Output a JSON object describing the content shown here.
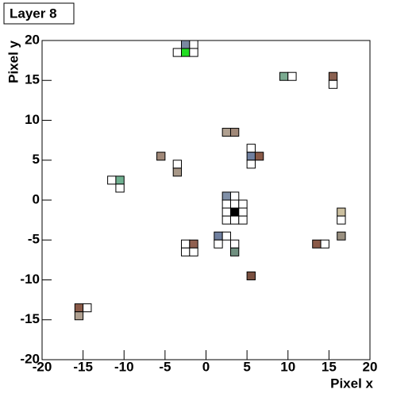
{
  "chart_data": {
    "type": "cells2d",
    "title": "Layer 8",
    "x_label": "Pixel x",
    "y_label": "Pixel y",
    "xlim": [
      -20,
      20
    ],
    "ylim": [
      -20,
      20
    ],
    "xticks": [
      -20,
      -15,
      -10,
      -5,
      0,
      5,
      10,
      15,
      20
    ],
    "yticks": [
      -20,
      -15,
      -10,
      -5,
      0,
      5,
      10,
      15,
      20
    ],
    "cell_size": 1,
    "cells": [
      {
        "x": -2.5,
        "y": 19.5,
        "color": "#7a88a0"
      },
      {
        "x": -1.5,
        "y": 19.5,
        "color": "#ffffff"
      },
      {
        "x": -3.5,
        "y": 18.5,
        "color": "#ffffff"
      },
      {
        "x": -2.5,
        "y": 18.5,
        "color": "#22dd22"
      },
      {
        "x": -1.5,
        "y": 18.5,
        "color": "#ffffff"
      },
      {
        "x": 9.5,
        "y": 15.5,
        "color": "#7aaa90"
      },
      {
        "x": 10.5,
        "y": 15.5,
        "color": "#ffffff"
      },
      {
        "x": 15.5,
        "y": 15.5,
        "color": "#8a6050"
      },
      {
        "x": 15.5,
        "y": 14.5,
        "color": "#ffffff"
      },
      {
        "x": 2.5,
        "y": 8.5,
        "color": "#b0a090"
      },
      {
        "x": 3.5,
        "y": 8.5,
        "color": "#a08878"
      },
      {
        "x": 5.5,
        "y": 6.5,
        "color": "#ffffff"
      },
      {
        "x": 5.5,
        "y": 5.5,
        "color": "#7080a0"
      },
      {
        "x": 6.5,
        "y": 5.5,
        "color": "#8a5a48"
      },
      {
        "x": 5.5,
        "y": 4.5,
        "color": "#ffffff"
      },
      {
        "x": -5.5,
        "y": 5.5,
        "color": "#a08878"
      },
      {
        "x": -3.5,
        "y": 4.5,
        "color": "#ffffff"
      },
      {
        "x": -3.5,
        "y": 3.5,
        "color": "#a89888"
      },
      {
        "x": -11.5,
        "y": 2.5,
        "color": "#ffffff"
      },
      {
        "x": -10.5,
        "y": 2.5,
        "color": "#70b090"
      },
      {
        "x": -10.5,
        "y": 1.5,
        "color": "#ffffff"
      },
      {
        "x": 2.5,
        "y": 0.5,
        "color": "#8090a8"
      },
      {
        "x": 3.5,
        "y": 0.5,
        "color": "#ffffff"
      },
      {
        "x": 2.5,
        "y": -0.5,
        "color": "#ffffff"
      },
      {
        "x": 3.5,
        "y": -0.5,
        "color": "#ffffff"
      },
      {
        "x": 4.5,
        "y": -0.5,
        "color": "#ffffff"
      },
      {
        "x": 2.5,
        "y": -1.5,
        "color": "#ffffff"
      },
      {
        "x": 3.5,
        "y": -1.5,
        "color": "#000000"
      },
      {
        "x": 4.5,
        "y": -1.5,
        "color": "#ffffff"
      },
      {
        "x": 2.5,
        "y": -2.5,
        "color": "#ffffff"
      },
      {
        "x": 3.5,
        "y": -2.5,
        "color": "#ffffff"
      },
      {
        "x": 4.5,
        "y": -2.5,
        "color": "#ffffff"
      },
      {
        "x": 16.5,
        "y": -1.5,
        "color": "#ccc0a0"
      },
      {
        "x": 16.5,
        "y": -2.5,
        "color": "#ffffff"
      },
      {
        "x": 16.5,
        "y": -4.5,
        "color": "#9a9080"
      },
      {
        "x": 13.5,
        "y": -5.5,
        "color": "#8a5a48"
      },
      {
        "x": 14.5,
        "y": -5.5,
        "color": "#ffffff"
      },
      {
        "x": 1.5,
        "y": -4.5,
        "color": "#7080a0"
      },
      {
        "x": 2.5,
        "y": -4.5,
        "color": "#ffffff"
      },
      {
        "x": 1.5,
        "y": -5.5,
        "color": "#ffffff"
      },
      {
        "x": 3.5,
        "y": -5.5,
        "color": "#ffffff"
      },
      {
        "x": 3.5,
        "y": -6.5,
        "color": "#709080"
      },
      {
        "x": -2.5,
        "y": -5.5,
        "color": "#ffffff"
      },
      {
        "x": -1.5,
        "y": -5.5,
        "color": "#906050"
      },
      {
        "x": -2.5,
        "y": -6.5,
        "color": "#ffffff"
      },
      {
        "x": -1.5,
        "y": -6.5,
        "color": "#ffffff"
      },
      {
        "x": 5.5,
        "y": -9.5,
        "color": "#7a5040"
      },
      {
        "x": -15.5,
        "y": -13.5,
        "color": "#8a5a48"
      },
      {
        "x": -14.5,
        "y": -13.5,
        "color": "#ffffff"
      },
      {
        "x": -15.5,
        "y": -14.5,
        "color": "#b0a090"
      }
    ]
  }
}
